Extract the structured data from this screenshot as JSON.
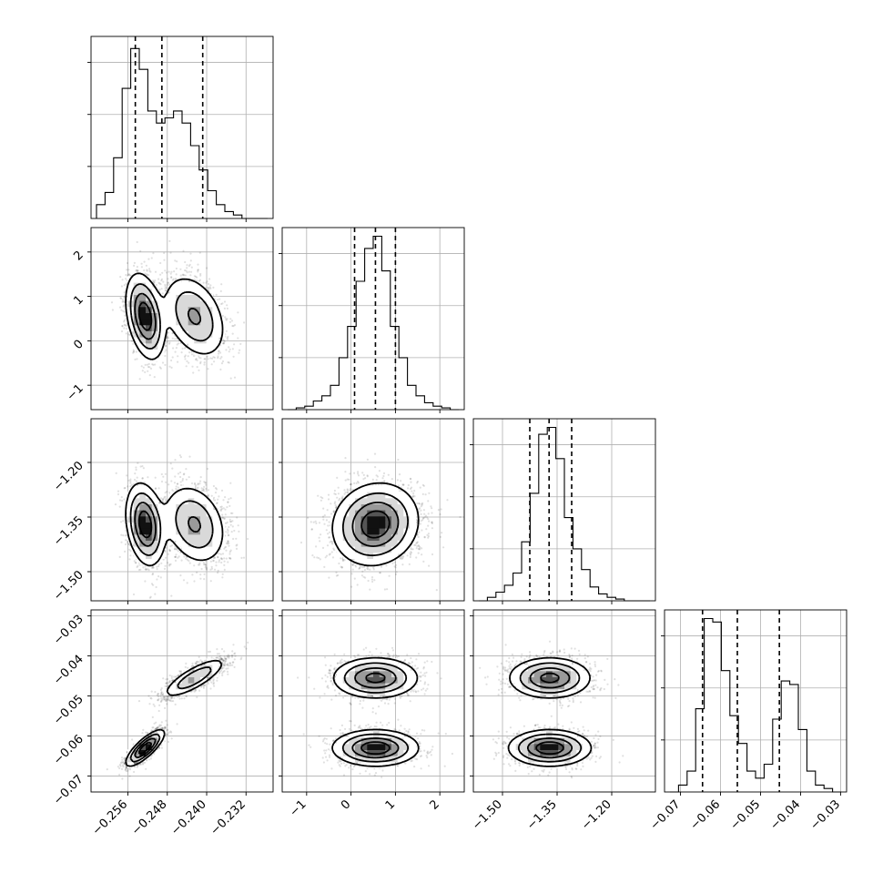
{
  "chart_data": {
    "type": "corner",
    "grid": true,
    "parameters": [
      {
        "range": [
          -0.2635,
          -0.2265
        ],
        "ticks": [
          -0.256,
          -0.248,
          -0.24,
          -0.232
        ],
        "tick_labels": [
          "−0.256",
          "−0.248",
          "−0.240",
          "−0.232"
        ],
        "quantiles": [
          -0.2545,
          -0.2491,
          -0.2408
        ],
        "modes": [
          {
            "w": 0.53,
            "mean": -0.2525,
            "sd": 0.0019
          },
          {
            "w": 0.47,
            "mean": -0.2425,
            "sd": 0.0032
          }
        ]
      },
      {
        "range": [
          -1.55,
          2.55
        ],
        "ticks": [
          -1,
          0,
          1,
          2
        ],
        "tick_labels": [
          "−1",
          "0",
          "1",
          "2"
        ],
        "quantiles": [
          0.08,
          0.55,
          1.0
        ],
        "modes": [
          {
            "w": 1.0,
            "mean": 0.55,
            "sd": 0.47
          }
        ]
      },
      {
        "range": [
          -1.58,
          -1.08
        ],
        "ticks": [
          -1.5,
          -1.35,
          -1.2
        ],
        "tick_labels": [
          "−1.50",
          "−1.35",
          "−1.20"
        ],
        "quantiles": [
          -1.425,
          -1.372,
          -1.31
        ],
        "modes": [
          {
            "w": 1.0,
            "mean": -1.37,
            "sd": 0.055
          }
        ]
      },
      {
        "range": [
          -0.074,
          -0.0285
        ],
        "ticks": [
          -0.07,
          -0.06,
          -0.05,
          -0.04,
          -0.03
        ],
        "tick_labels": [
          "−0.07",
          "−0.06",
          "−0.05",
          "−0.04",
          "−0.03"
        ],
        "quantiles": [
          -0.0645,
          -0.0558,
          -0.0453
        ],
        "modes": [
          {
            "w": 0.5,
            "mean": -0.063,
            "sd": 0.0022
          },
          {
            "w": 0.5,
            "mean": -0.0455,
            "sd": 0.0025
          }
        ]
      }
    ],
    "hist_bins": 20,
    "hist_counts": [
      [
        0.08,
        0.15,
        0.35,
        0.75,
        0.98,
        0.86,
        0.62,
        0.55,
        0.58,
        0.62,
        0.55,
        0.42,
        0.28,
        0.16,
        0.08,
        0.04,
        0.02,
        0.0,
        0.0,
        0.0
      ],
      [
        0.0,
        0.01,
        0.02,
        0.05,
        0.08,
        0.14,
        0.3,
        0.48,
        0.74,
        0.93,
        1.0,
        0.8,
        0.48,
        0.3,
        0.14,
        0.08,
        0.04,
        0.02,
        0.01,
        0.0
      ],
      [
        0.0,
        0.02,
        0.05,
        0.09,
        0.16,
        0.34,
        0.62,
        0.96,
        1.0,
        0.82,
        0.48,
        0.3,
        0.18,
        0.08,
        0.04,
        0.02,
        0.01,
        0.0,
        0.0,
        0.0
      ],
      [
        0.0,
        0.04,
        0.12,
        0.48,
        1.0,
        0.98,
        0.7,
        0.44,
        0.28,
        0.12,
        0.08,
        0.16,
        0.42,
        0.64,
        0.62,
        0.36,
        0.12,
        0.04,
        0.02,
        0.0
      ]
    ],
    "correlations": [
      [
        1.0,
        -0.35,
        -0.25,
        0.8
      ],
      [
        -0.35,
        1.0,
        0.1,
        0.0
      ],
      [
        -0.25,
        0.1,
        1.0,
        0.0
      ],
      [
        0.8,
        0.0,
        0.0,
        1.0
      ]
    ],
    "x_tick_labels_rotated_deg": 45,
    "y_tick_labels_rotated_deg": 45
  }
}
